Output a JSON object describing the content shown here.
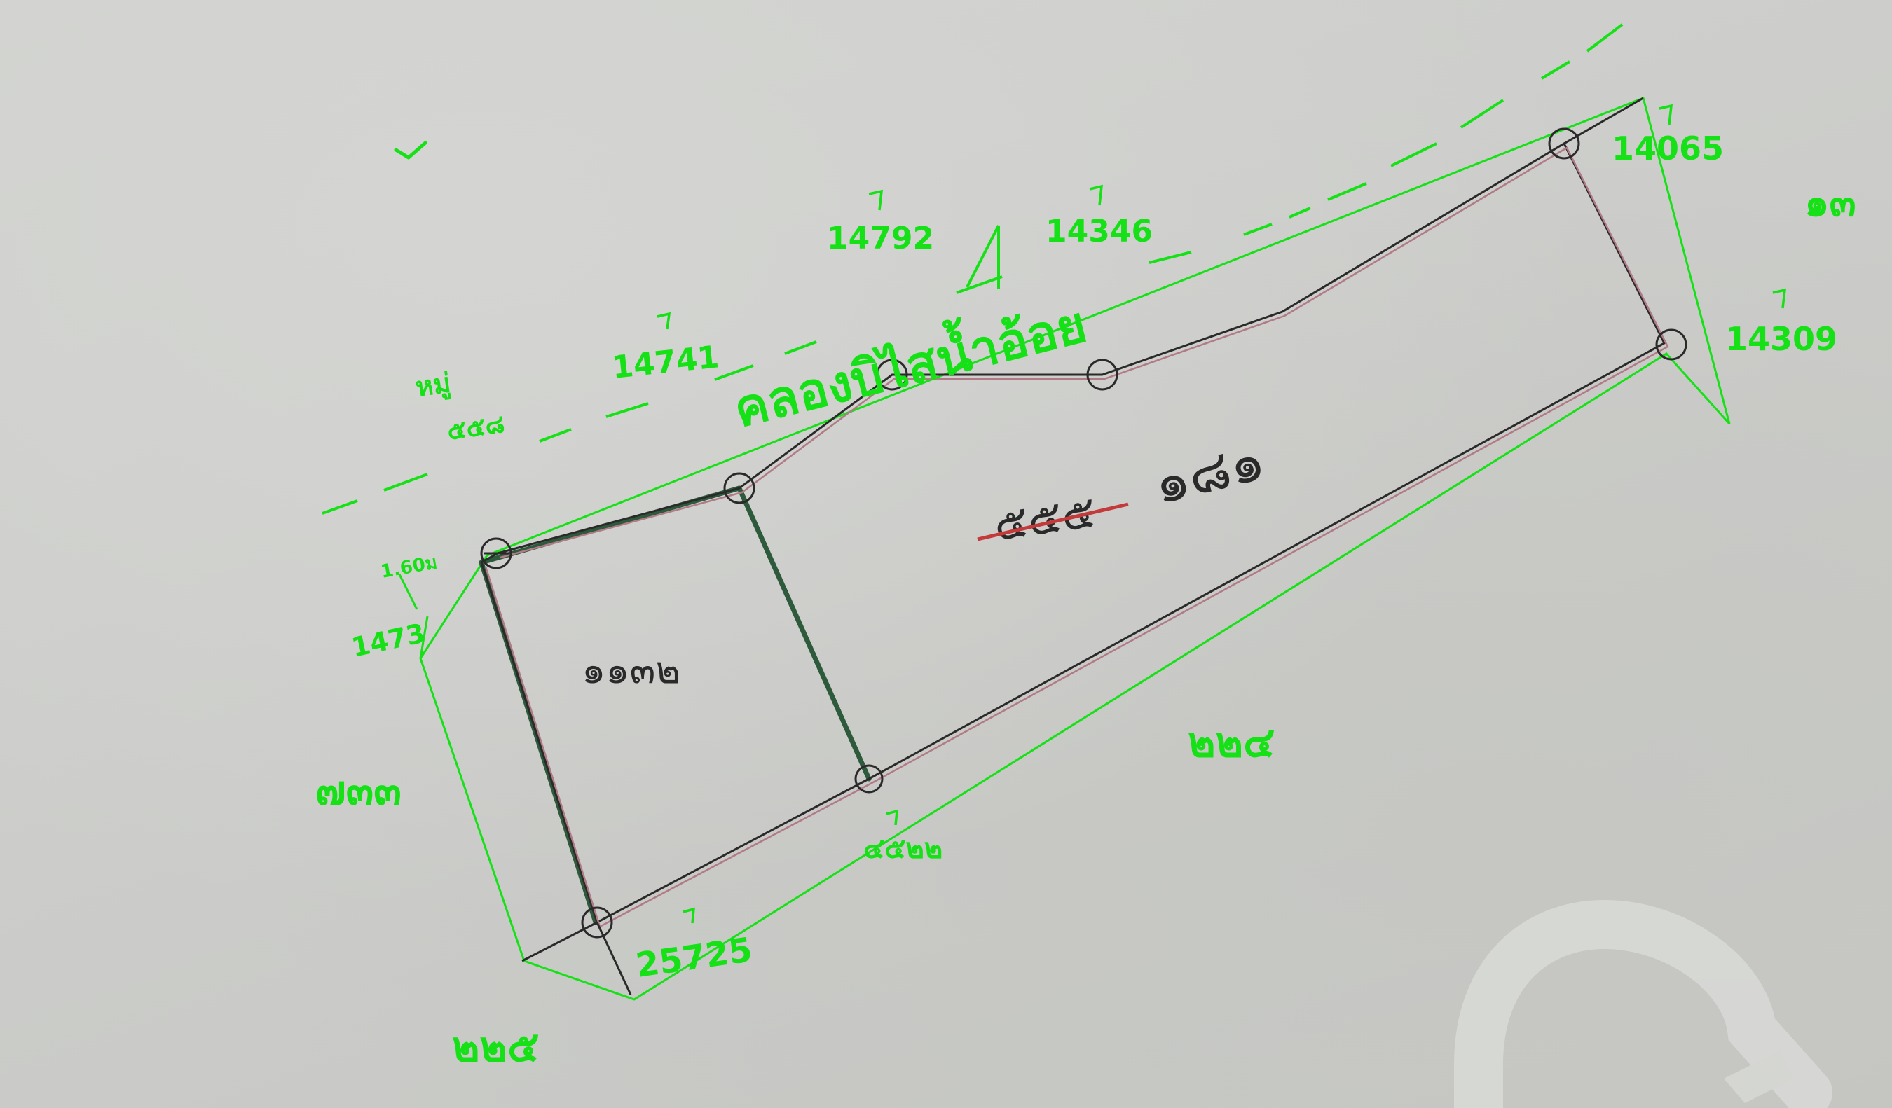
{
  "colors": {
    "paper": "#cfd0cd",
    "annotation_green": "#16e016",
    "parcel_line": "#2a2a2a",
    "pink_line": "#b07a86",
    "dark_green": "#2e5a3c",
    "strike_red": "#c43a3a"
  },
  "canal": {
    "label": "คลองบิไสน้ำอ้อย"
  },
  "village": {
    "line1": "หมู่",
    "line2": "๕๕๘"
  },
  "parcels": {
    "main_old": "๕๕๕",
    "main_new": "๑๘๑",
    "subdivided": "๑๑๓๒"
  },
  "neighbors": {
    "n14741": "14741",
    "n14792": "14792",
    "n14346": "14346",
    "n14065": "14065",
    "n14309": "14309",
    "n25725": "25725",
    "n4522": "๔๕๒๒",
    "n1473": "1473",
    "right_edge": "๑๓",
    "south_main": "๒๒๔",
    "south_corner": "๒๒๕",
    "west": "๗๓๓",
    "measure": "1.60ม"
  },
  "icons": {
    "pin_markers": "survey-pin-icon",
    "north_mark": "check-mark-icon",
    "watermark": "arch-watermark-icon"
  }
}
